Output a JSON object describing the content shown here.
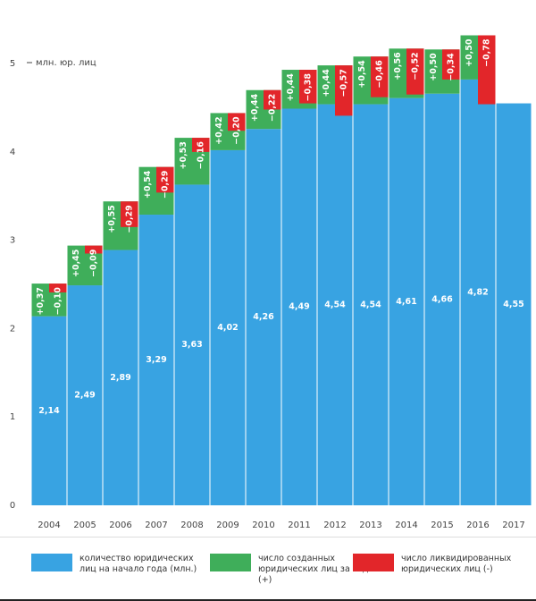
{
  "chart_data": {
    "type": "bar",
    "y_label": "млн. юр. лиц",
    "categories": [
      "2004",
      "2005",
      "2006",
      "2007",
      "2008",
      "2009",
      "2010",
      "2011",
      "2012",
      "2013",
      "2014",
      "2015",
      "2016",
      "2017"
    ],
    "series": [
      {
        "name": "количество юридических лиц на начало года (млн.)",
        "color": "#38a3e2",
        "values": [
          2.14,
          2.49,
          2.89,
          3.29,
          3.63,
          4.02,
          4.26,
          4.49,
          4.54,
          4.54,
          4.61,
          4.66,
          4.82,
          4.55
        ],
        "value_labels": [
          "2,14",
          "2,49",
          "2,89",
          "3,29",
          "3,63",
          "4,02",
          "4,26",
          "4,49",
          "4,54",
          "4,54",
          "4,61",
          "4,66",
          "4,82",
          "4,55"
        ]
      },
      {
        "name": "число созданных юридических лиц за год (+)",
        "color": "#3fae5a",
        "values": [
          0.37,
          0.45,
          0.55,
          0.54,
          0.53,
          0.42,
          0.44,
          0.44,
          0.44,
          0.54,
          0.56,
          0.5,
          0.5,
          null
        ],
        "value_labels": [
          "+0,37",
          "+0,45",
          "+0,55",
          "+0,54",
          "+0,53",
          "+0,42",
          "+0,44",
          "+0,44",
          "+0,44",
          "+0,54",
          "+0,56",
          "+0,50",
          "+0,50",
          null
        ]
      },
      {
        "name": "число ликвидированных юридических лиц (-)",
        "color": "#e2262a",
        "values": [
          0.1,
          0.09,
          0.29,
          0.29,
          0.16,
          0.2,
          0.22,
          0.38,
          0.57,
          0.46,
          0.52,
          0.34,
          0.78,
          null
        ],
        "value_labels": [
          "−0,10",
          "−0,09",
          "−0,29",
          "−0,29",
          "−0,16",
          "−0,20",
          "−0,22",
          "−0,38",
          "−0,57",
          "−0,46",
          "−0,52",
          "−0,34",
          "−0,78",
          null
        ]
      }
    ],
    "ylim": [
      0,
      5.72
    ],
    "yticks": [
      0,
      1,
      2,
      3,
      4,
      5
    ]
  }
}
